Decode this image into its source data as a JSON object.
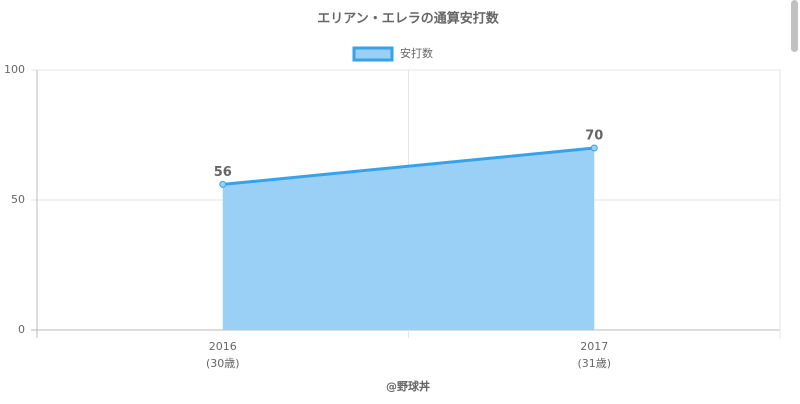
{
  "chart_data": {
    "type": "area",
    "title": "エリアン・エレラの通算安打数",
    "categories": [
      "2016",
      "2017"
    ],
    "category_sublabels": [
      "(30歳)",
      "(31歳)"
    ],
    "series": [
      {
        "name": "安打数",
        "color": "#36a2eb",
        "fill": "#9ad0f5",
        "values": [
          56,
          70
        ]
      }
    ],
    "ylim": [
      0,
      100
    ],
    "yticks": [
      0,
      50,
      100
    ],
    "grid": true,
    "legend": "top",
    "footer": "@野球丼"
  }
}
